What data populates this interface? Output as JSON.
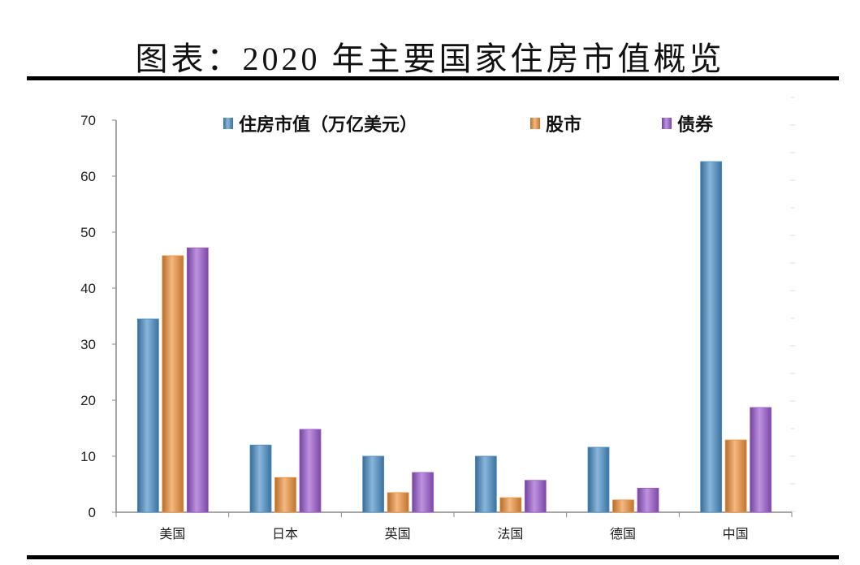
{
  "chart_data": {
    "type": "bar",
    "title": "图表：2020 年主要国家住房市值概览",
    "categories": [
      "美国",
      "日本",
      "英国",
      "法国",
      "德国",
      "中国"
    ],
    "series": [
      {
        "name": "住房市值（万亿美元）",
        "color": "#4A8FC8",
        "values": [
          34.5,
          12.0,
          10.0,
          10.0,
          11.6,
          62.6
        ]
      },
      {
        "name": "股市",
        "color": "#F0913A",
        "values": [
          45.8,
          6.2,
          3.5,
          2.6,
          2.2,
          12.9
        ]
      },
      {
        "name": "债券",
        "color": "#9B59D0",
        "values": [
          47.2,
          14.8,
          7.1,
          5.7,
          4.3,
          18.7
        ]
      }
    ],
    "ylim": [
      0,
      70
    ],
    "yticks": [
      0,
      10,
      20,
      30,
      40,
      50,
      60,
      70
    ],
    "xlabel": "",
    "ylabel": "",
    "grid": false,
    "legend": "top"
  }
}
